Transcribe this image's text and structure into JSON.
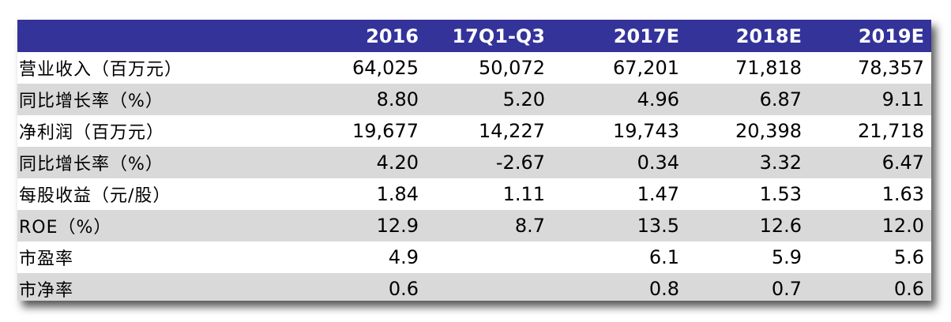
{
  "table": {
    "headers": [
      "2016",
      "17Q1-Q3",
      "2017E",
      "2018E",
      "2019E"
    ],
    "rows": [
      {
        "label": "营业收入（百万元）",
        "values": [
          "64,025",
          "50,072",
          "67,201",
          "71,818",
          "78,357"
        ]
      },
      {
        "label": "同比增长率（%）",
        "values": [
          "8.80",
          "5.20",
          "4.96",
          "6.87",
          "9.11"
        ]
      },
      {
        "label": "净利润（百万元）",
        "values": [
          "19,677",
          "14,227",
          "19,743",
          "20,398",
          "21,718"
        ]
      },
      {
        "label": "同比增长率（%）",
        "values": [
          "4.20",
          "-2.67",
          "0.34",
          "3.32",
          "6.47"
        ]
      },
      {
        "label": "每股收益（元/股）",
        "values": [
          "1.84",
          "1.11",
          "1.47",
          "1.53",
          "1.63"
        ]
      },
      {
        "label": "ROE（%）",
        "values": [
          "12.9",
          "8.7",
          "13.5",
          "12.6",
          "12.0"
        ]
      },
      {
        "label": "市盈率",
        "values": [
          "4.9",
          "",
          "6.1",
          "5.9",
          "5.6"
        ]
      },
      {
        "label": "市净率",
        "values": [
          "0.6",
          "",
          "0.8",
          "0.7",
          "0.6"
        ]
      }
    ]
  },
  "colors": {
    "header_background": "#33339a",
    "header_text": "#ffffff",
    "shaded_row": "#d9d9d9",
    "plain_row": "#ffffff"
  }
}
